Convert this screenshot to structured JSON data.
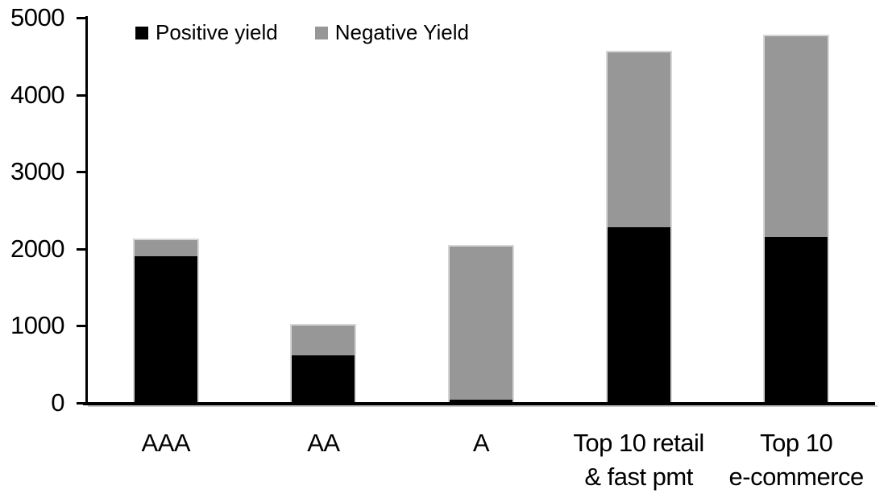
{
  "chart_data": {
    "type": "bar",
    "stacked": true,
    "title": "",
    "xlabel": "",
    "ylabel": "",
    "categories": [
      "AAA",
      "AA",
      "A",
      "Top 10 retail\n& fast pmt",
      "Top 10\ne-commerce"
    ],
    "series": [
      {
        "name": "Positive yield",
        "color": "#000000",
        "values": [
          1900,
          620,
          40,
          2280,
          2150
        ]
      },
      {
        "name": "Negative Yield",
        "color": "#979797",
        "values": [
          210,
          380,
          1990,
          2270,
          2610
        ]
      }
    ],
    "totals": [
      2110,
      1000,
      2030,
      4550,
      4760
    ],
    "ylim": [
      0,
      5000
    ],
    "yticks": [
      0,
      1000,
      2000,
      3000,
      4000,
      5000
    ],
    "grid": false,
    "legend_position": "top-left",
    "axis_color": "#000000",
    "bar_outline_color": "#d6d6d6",
    "background_color": "#ffffff"
  }
}
